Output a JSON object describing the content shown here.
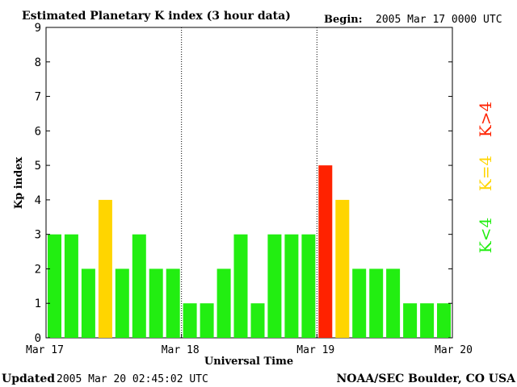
{
  "header": {
    "title": "Estimated Planetary K index (3 hour data)",
    "begin_label": "Begin:",
    "begin_value": "2005 Mar 17 0000 UTC"
  },
  "footer": {
    "updated_label": "Updated",
    "updated_value": "2005 Mar 20 02:45:02 UTC",
    "source": "NOAA/SEC Boulder, CO USA"
  },
  "colors": {
    "low": "#22ee11",
    "mid": "#ffd500",
    "high": "#ff2200"
  },
  "chart_data": {
    "type": "bar",
    "title": "Estimated Planetary K index (3 hour data)",
    "xlabel": "Universal Time",
    "ylabel": "Kp index",
    "ylim": [
      0,
      9
    ],
    "yticks": [
      "0",
      "1",
      "2",
      "3",
      "4",
      "5",
      "6",
      "7",
      "8",
      "9"
    ],
    "xticks": [
      "Mar 17",
      "Mar 18",
      "Mar 19",
      "Mar 20"
    ],
    "values": [
      3,
      3,
      2,
      4,
      2,
      3,
      2,
      2,
      1,
      1,
      2,
      3,
      1,
      3,
      3,
      3,
      5,
      4,
      2,
      2,
      2,
      1,
      1,
      1
    ],
    "legend": [
      "K<4",
      "K=4",
      "K>4"
    ],
    "legend_position": "right",
    "grid": false
  }
}
